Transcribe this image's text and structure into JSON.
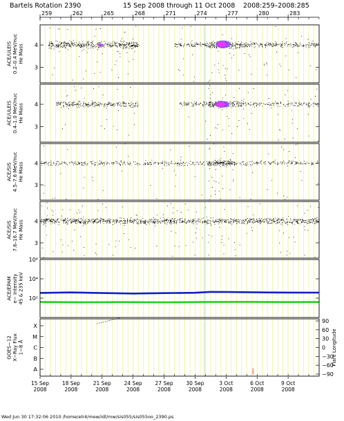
{
  "header": {
    "rotation": "Bartels Rotation 2390",
    "span": "15 Sep 2008 through 11 Oct 2008",
    "doy": "2008:259–2008:285"
  },
  "footer": {
    "text": "Wed Jun 30 17:32:06 2010   /home/elr4/mew/idl/mw/sis055/sis055oo_2390.ps"
  },
  "colors": {
    "grid": "#f4f4a0",
    "event_grid": "#b8e2b0",
    "scatter": "#000000",
    "density_core": "#ff30ff",
    "density_mid": "#8a40ff",
    "epam_e": "#1020c0",
    "epam_h": "#20d020",
    "flare": "#ff8080"
  },
  "chart_data": {
    "type": "scatter",
    "x_axis": {
      "range_doy": [
        259,
        286
      ],
      "top_ticks": [
        "259",
        "262",
        "265",
        "268",
        "271",
        "274",
        "277",
        "280",
        "283"
      ],
      "top_tick_doy": [
        259,
        262,
        265,
        268,
        271,
        274,
        277,
        280,
        283
      ],
      "bottom_labels": [
        {
          "day": "15 Sep",
          "year": "2008",
          "doy": 259
        },
        {
          "day": "18 Sep",
          "year": "2008",
          "doy": 262
        },
        {
          "day": "21 Sep",
          "year": "2008",
          "doy": 265
        },
        {
          "day": "24 Sep",
          "year": "2008",
          "doy": 268
        },
        {
          "day": "27 Sep",
          "year": "2008",
          "doy": 271
        },
        {
          "day": "30 Sep",
          "year": "2008",
          "doy": 274
        },
        {
          "day": "3 Oct",
          "year": "2008",
          "doy": 277
        },
        {
          "day": "6 Oct",
          "year": "2008",
          "doy": 280
        },
        {
          "day": "9 Oct",
          "year": "2008",
          "doy": 283
        }
      ]
    },
    "panels": [
      {
        "id": "uleis-low",
        "ylabel": [
          "ACE/ULEIS",
          "0.2–0.4 MeV/nuc",
          "He Mass"
        ],
        "ylim": [
          2.3,
          4.9
        ],
        "yticks": [
          "4",
          "3"
        ],
        "ytick_values": [
          4,
          3
        ],
        "bands": [
          {
            "x": [
              259.8,
              268.6
            ],
            "y": 4.0,
            "density": 0.9
          },
          {
            "x": [
              272.0,
              275.3
            ],
            "y": 4.0,
            "density": 0.55
          },
          {
            "x": [
              275.3,
              278.5
            ],
            "y": 4.0,
            "density": 1.0
          },
          {
            "x": [
              278.5,
              286.0
            ],
            "y": 4.0,
            "density": 0.55
          }
        ],
        "cores": [
          {
            "x": [
              276.0,
              277.4
            ],
            "y": [
              3.85,
              4.2
            ]
          },
          {
            "x": [
              264.6,
              265.1
            ],
            "y": [
              3.95,
              4.05
            ]
          }
        ]
      },
      {
        "id": "uleis-high",
        "ylabel": [
          "ACE/ULEIS",
          "0.4–1.0 MeV/nuc",
          "He Mass"
        ],
        "ylim": [
          2.3,
          4.9
        ],
        "yticks": [
          "4",
          "3"
        ],
        "ytick_values": [
          4,
          3
        ],
        "bands": [
          {
            "x": [
              260.5,
              268.5
            ],
            "y": 4.0,
            "density": 0.6
          },
          {
            "x": [
              272.5,
              275.3
            ],
            "y": 4.0,
            "density": 0.45
          },
          {
            "x": [
              275.3,
              278.5
            ],
            "y": 4.0,
            "density": 1.0
          },
          {
            "x": [
              278.5,
              286.0
            ],
            "y": 4.0,
            "density": 0.4
          }
        ],
        "cores": [
          {
            "x": [
              275.9,
              277.3
            ],
            "y": [
              3.85,
              4.15
            ]
          }
        ]
      },
      {
        "id": "sis-low",
        "ylabel": [
          "ACE/SIS",
          "4.5–7.6 MeV/nuc",
          "He Mass"
        ],
        "ylim": [
          2.3,
          4.9
        ],
        "yticks": [
          "4",
          "3"
        ],
        "ytick_values": [
          4,
          3
        ],
        "bands": [
          {
            "x": [
              259.0,
              286.0
            ],
            "y": 4.0,
            "density": 0.35
          },
          {
            "x": [
              275.3,
              277.8
            ],
            "y": 4.0,
            "density": 0.9
          }
        ],
        "cores": []
      },
      {
        "id": "sis-high",
        "ylabel": [
          "ACE/SIS",
          "7.6–16.7 MeV/nuc",
          "He Mass"
        ],
        "ylim": [
          2.3,
          4.9
        ],
        "yticks": [
          "4",
          "3"
        ],
        "ytick_values": [
          4,
          3
        ],
        "bands": [
          {
            "x": [
              259.0,
              286.0
            ],
            "y": 4.0,
            "density": 0.75
          }
        ],
        "cores": []
      },
      {
        "id": "epam",
        "ylabel": [
          "ACE/EPAM",
          "e− Intensity",
          "45 & 235 keV"
        ],
        "log": true,
        "ylim": [
          1,
          1000000
        ],
        "yticks": [
          "10⁶",
          "10⁴",
          "10²"
        ],
        "ytick_values": [
          1000000,
          10000,
          100
        ],
        "series": [
          {
            "name": "",
            "color": "#1020c0",
            "x": [
              259,
              262,
              265,
              268,
              271,
              274,
              275.5,
              277,
              280,
              283,
              286
            ],
            "y": [
              350,
              390,
              340,
              300,
              330,
              360,
              450,
              430,
              400,
              380,
              370
            ]
          },
          {
            "name": "",
            "color": "#20d020",
            "x": [
              259,
              263,
              267,
              271,
              275,
              279,
              283,
              286
            ],
            "y": [
              40,
              38,
              39,
              37,
              40,
              41,
              39,
              40
            ]
          }
        ]
      },
      {
        "id": "goes",
        "ylabel": [
          "GOES−12",
          "X−Ray Flux",
          "1−8 Å"
        ],
        "yticks": [
          "X",
          "M",
          "C",
          "B",
          "A"
        ],
        "right_label": "Flare Longitude",
        "right_ticks": [
          "90",
          "60",
          "30",
          "0",
          "−30",
          "−60",
          "−90"
        ],
        "right_tick_values": [
          90,
          60,
          30,
          0,
          -30,
          -60,
          -90
        ],
        "xray_trace": {
          "x": [
            264.5,
            266.8
          ],
          "level": [
            4.2,
            4.75
          ]
        },
        "flares": [
          {
            "doy": 279.6,
            "longitude": -82
          }
        ]
      }
    ]
  }
}
